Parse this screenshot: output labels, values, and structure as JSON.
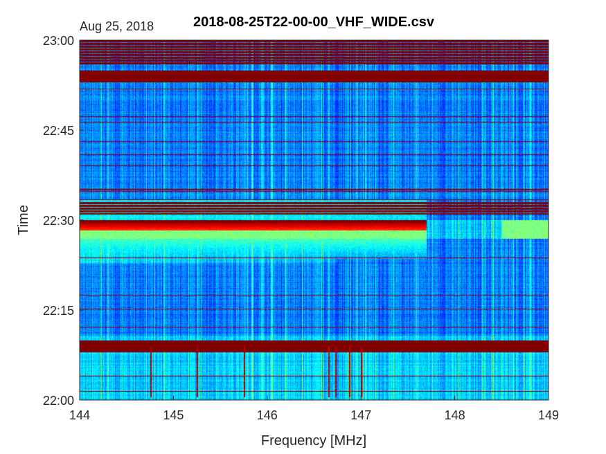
{
  "chart_data": {
    "type": "heatmap",
    "title": "2018-08-25T22-00-00_VHF_WIDE.csv",
    "date_label": "Aug 25, 2018",
    "xlabel": "Frequency [MHz]",
    "ylabel": "Time",
    "xlim": [
      144,
      149
    ],
    "ylim": [
      "22:00",
      "23:00"
    ],
    "x_ticks": [
      "144",
      "145",
      "146",
      "147",
      "148",
      "149"
    ],
    "y_ticks": [
      "22:00",
      "22:15",
      "22:30",
      "22:45",
      "23:00"
    ],
    "colormap": "jet",
    "colors": {
      "low": "#00008f",
      "mid": "#00ffff",
      "high": "#800000"
    },
    "saturated_time_bands": [
      {
        "start": "22:56",
        "end": "23:00"
      },
      {
        "start": "22:53",
        "end": "22:55"
      },
      {
        "start": "22:31",
        "end": "22:33"
      },
      {
        "start": "22:08",
        "end": "22:10"
      }
    ],
    "strong_activity_band": {
      "start": "22:27",
      "end": "22:30",
      "freq_range": [
        144,
        147.7
      ]
    },
    "grid": false
  }
}
